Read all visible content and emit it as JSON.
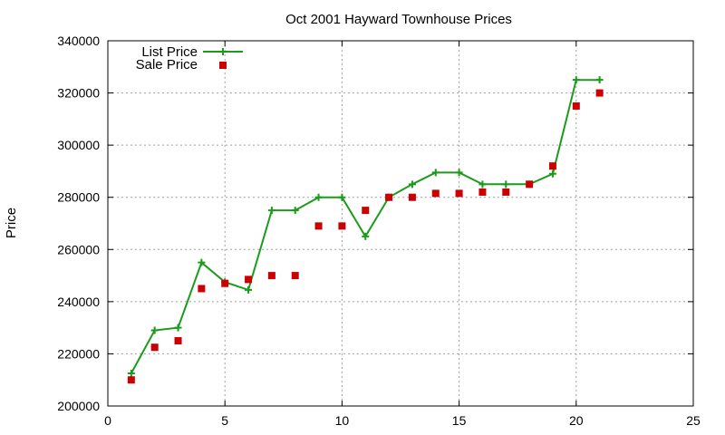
{
  "chart_data": {
    "type": "line",
    "title": "Oct 2001 Hayward Townhouse Prices",
    "xlabel": "",
    "ylabel": "Price",
    "xlim": [
      0,
      25
    ],
    "ylim": [
      200000,
      340000
    ],
    "xticks": [
      0,
      5,
      10,
      15,
      20,
      25
    ],
    "yticks": [
      200000,
      220000,
      240000,
      260000,
      280000,
      300000,
      320000,
      340000
    ],
    "grid": true,
    "legend_position": "top-left",
    "series": [
      {
        "name": "List Price",
        "style": "line-with-plus-markers",
        "color": "#1a9c1a",
        "x": [
          1,
          2,
          3,
          4,
          5,
          6,
          7,
          8,
          9,
          10,
          11,
          12,
          13,
          14,
          15,
          16,
          17,
          18,
          19,
          20,
          21
        ],
        "y": [
          212500,
          229000,
          230000,
          255000,
          247500,
          244500,
          275000,
          275000,
          280000,
          280000,
          265000,
          280000,
          285000,
          289500,
          289500,
          285000,
          285000,
          285000,
          289000,
          325000,
          325000
        ]
      },
      {
        "name": "Sale Price",
        "style": "square-markers",
        "color": "#cc0000",
        "x": [
          1,
          2,
          3,
          4,
          5,
          6,
          7,
          8,
          9,
          10,
          11,
          12,
          13,
          14,
          15,
          16,
          17,
          18,
          19,
          20,
          21
        ],
        "y": [
          210000,
          222500,
          225000,
          245000,
          247000,
          248500,
          250000,
          250000,
          269000,
          269000,
          275000,
          280000,
          280000,
          281500,
          281500,
          282000,
          282000,
          285000,
          292000,
          315000,
          320000
        ]
      }
    ]
  }
}
